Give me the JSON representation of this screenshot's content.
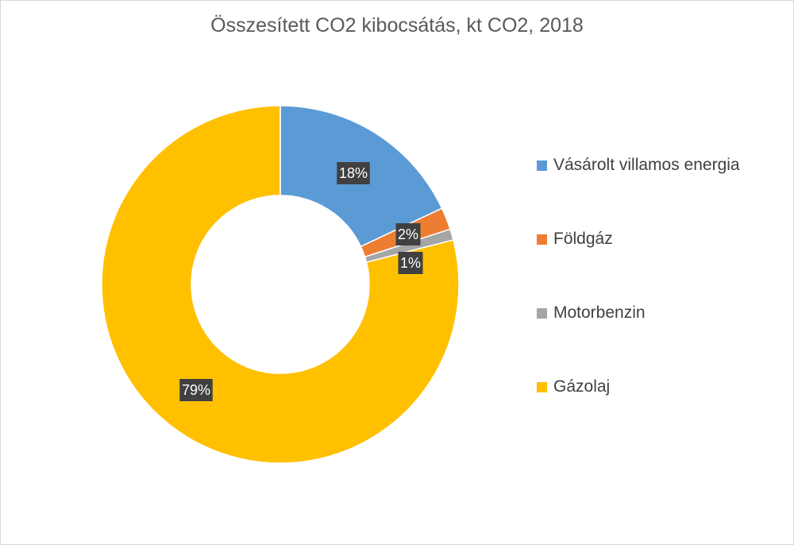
{
  "chart_data": {
    "type": "pie",
    "style": "donut",
    "title": "Összesített CO2 kibocsátás, kt CO2, 2018",
    "categories": [
      "Vásárolt villamos energia",
      "Földgáz",
      "Motorbenzin",
      "Gázolaj"
    ],
    "values": [
      18,
      2,
      1,
      79
    ],
    "value_labels": [
      "18%",
      "2%",
      "1%",
      "79%"
    ],
    "colors": [
      "#5b9bd5",
      "#ed7d31",
      "#a5a5a5",
      "#ffc000"
    ],
    "legend_position": "right",
    "data_label_background": "#404040"
  }
}
